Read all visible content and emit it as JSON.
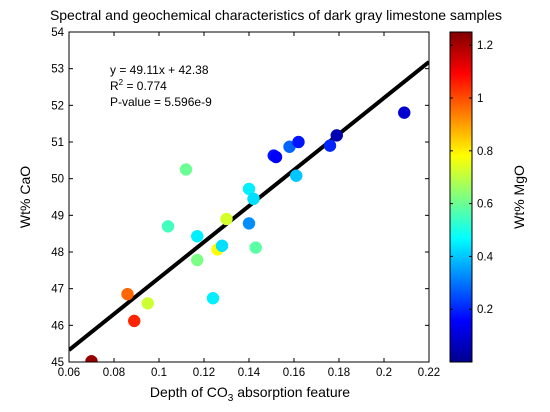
{
  "chart_data": {
    "type": "scatter",
    "title": "Spectral and geochemical characteristics of dark gray limestone samples",
    "xlabel_main": "Depth of CO",
    "xlabel_sub": "3",
    "xlabel_rest": " absorption feature",
    "ylabel": "Wt% CaO",
    "colorbar_label": "Wt% MgO",
    "xlim": [
      0.06,
      0.22
    ],
    "ylim": [
      45,
      54
    ],
    "xticks": [
      0.06,
      0.08,
      0.1,
      0.12,
      0.14,
      0.16,
      0.18,
      0.2,
      0.22
    ],
    "xtick_labels": [
      "0.06",
      "0.08",
      "0.1",
      "0.12",
      "0.14",
      "0.16",
      "0.18",
      "0.2",
      "0.22"
    ],
    "yticks": [
      45,
      46,
      47,
      48,
      49,
      50,
      51,
      52,
      53,
      54
    ],
    "ytick_labels": [
      "45",
      "46",
      "47",
      "48",
      "49",
      "50",
      "51",
      "52",
      "53",
      "54"
    ],
    "colorbar_range": [
      0.0,
      1.25
    ],
    "colorbar_ticks": [
      0.2,
      0.4,
      0.6,
      0.8,
      1.0,
      1.2
    ],
    "colorbar_tick_labels": [
      "0.2",
      "0.4",
      "0.6",
      "0.8",
      "1",
      "1.2"
    ],
    "colormap": "jet",
    "grid": false,
    "fit_line": {
      "slope": 49.11,
      "intercept": 42.38,
      "x_range": [
        0.06,
        0.22
      ],
      "color": "#000000"
    },
    "annotations": {
      "equation": "y = 49.11x + 42.38",
      "r2_prefix": "R",
      "r2_sup": "2",
      "r2_rest": " = 0.774",
      "pvalue": "P-value = 5.596e-9"
    },
    "points": [
      {
        "x": 0.07,
        "y": 45.02,
        "mgo": 1.22
      },
      {
        "x": 0.086,
        "y": 46.85,
        "mgo": 0.97
      },
      {
        "x": 0.089,
        "y": 46.12,
        "mgo": 1.05
      },
      {
        "x": 0.095,
        "y": 46.6,
        "mgo": 0.72
      },
      {
        "x": 0.104,
        "y": 48.7,
        "mgo": 0.55
      },
      {
        "x": 0.112,
        "y": 50.25,
        "mgo": 0.6
      },
      {
        "x": 0.117,
        "y": 47.78,
        "mgo": 0.62
      },
      {
        "x": 0.117,
        "y": 48.43,
        "mgo": 0.45
      },
      {
        "x": 0.124,
        "y": 46.74,
        "mgo": 0.45
      },
      {
        "x": 0.126,
        "y": 48.07,
        "mgo": 0.78
      },
      {
        "x": 0.128,
        "y": 48.17,
        "mgo": 0.43
      },
      {
        "x": 0.13,
        "y": 48.9,
        "mgo": 0.73
      },
      {
        "x": 0.14,
        "y": 49.72,
        "mgo": 0.45
      },
      {
        "x": 0.14,
        "y": 48.78,
        "mgo": 0.33
      },
      {
        "x": 0.142,
        "y": 49.45,
        "mgo": 0.43
      },
      {
        "x": 0.143,
        "y": 48.12,
        "mgo": 0.58
      },
      {
        "x": 0.151,
        "y": 50.63,
        "mgo": 0.18
      },
      {
        "x": 0.152,
        "y": 50.59,
        "mgo": 0.15
      },
      {
        "x": 0.158,
        "y": 50.87,
        "mgo": 0.28
      },
      {
        "x": 0.161,
        "y": 50.08,
        "mgo": 0.4
      },
      {
        "x": 0.162,
        "y": 51.0,
        "mgo": 0.18
      },
      {
        "x": 0.176,
        "y": 50.9,
        "mgo": 0.2
      },
      {
        "x": 0.179,
        "y": 51.18,
        "mgo": 0.06
      },
      {
        "x": 0.209,
        "y": 51.8,
        "mgo": 0.1
      }
    ]
  }
}
